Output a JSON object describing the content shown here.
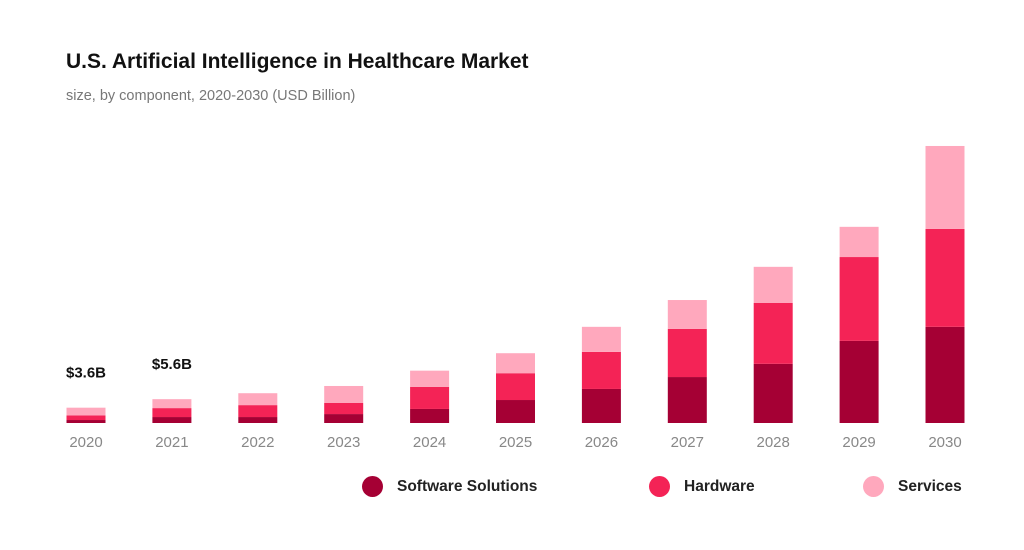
{
  "chart_data": {
    "type": "bar",
    "stacked": true,
    "title": "U.S. Artificial Intelligence in Healthcare Market",
    "subtitle": "size, by component, 2020-2030 (USD Billion)",
    "xlabel": "",
    "ylabel": "",
    "ylim": [
      0,
      66
    ],
    "grid": false,
    "legend_position": "bottom-right",
    "categories": [
      "2020",
      "2021",
      "2022",
      "2023",
      "2024",
      "2025",
      "2026",
      "2027",
      "2028",
      "2029",
      "2030"
    ],
    "series": [
      {
        "name": "Software Solutions",
        "color": "#a50034",
        "values": [
          0.7,
          1.4,
          1.4,
          2.1,
          3.3,
          5.4,
          8.0,
          10.8,
          13.9,
          19.3,
          22.6
        ]
      },
      {
        "name": "Hardware",
        "color": "#f42356",
        "values": [
          1.1,
          2.1,
          2.8,
          2.6,
          5.2,
          6.3,
          8.7,
          11.3,
          14.3,
          19.7,
          23.0
        ]
      },
      {
        "name": "Services",
        "color": "#ffa8bd",
        "values": [
          1.8,
          2.1,
          2.8,
          4.0,
          3.8,
          4.7,
          5.9,
          6.8,
          8.5,
          7.1,
          19.5
        ]
      }
    ],
    "annotations": [
      {
        "category": "2020",
        "text": "$3.6B"
      },
      {
        "category": "2021",
        "text": "$5.6B"
      }
    ]
  }
}
